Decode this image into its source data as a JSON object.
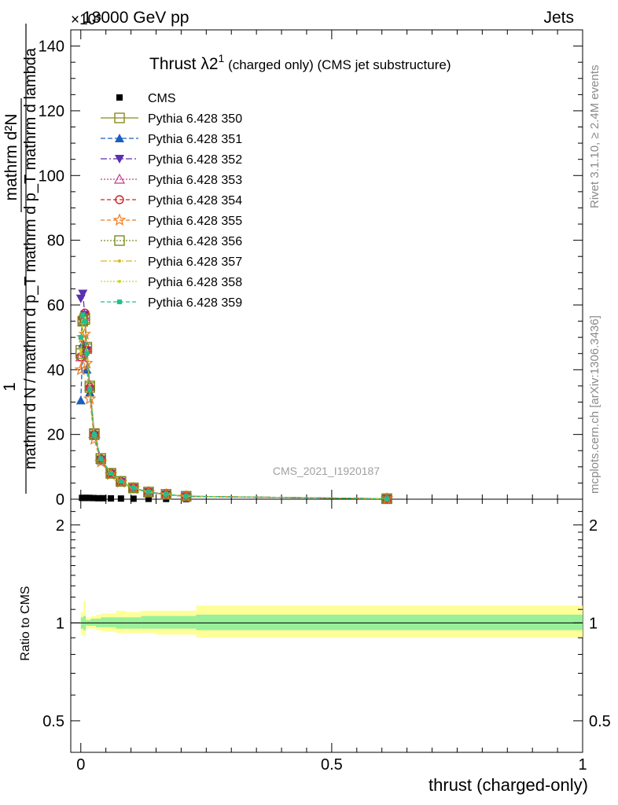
{
  "header": {
    "left": "13000 GeV pp",
    "right": "Jets",
    "exponent": "×10³"
  },
  "side_texts": {
    "rivet": "Rivet 3.1.10, ≥ 2.4M events",
    "mcplots": "mcplots.cern.ch [arXiv:1306.3436]"
  },
  "chart_data": [
    {
      "type": "line",
      "panel": "main",
      "title": "Thrust λ_2¹ (charged only) (CMS jet substructure)",
      "watermark": "CMS_2021_I1920187",
      "ylabel_numerator": "mathrm d²N",
      "ylabel_denominator": "mathrm d N / mathrm d p_T mathrm d p_T mathrm d lambda",
      "ylabel_prefix": "1",
      "ylim": [
        0,
        145
      ],
      "yticks": [
        0,
        20,
        40,
        60,
        80,
        100,
        120,
        140
      ],
      "xlim": [
        -0.02,
        1.0
      ],
      "legend_position": "top-left",
      "series": [
        {
          "name": "CMS",
          "color": "#000000",
          "marker": "filled-square",
          "x": [
            0.0025,
            0.0075,
            0.0125,
            0.0175,
            0.025,
            0.035,
            0.045,
            0.06,
            0.08,
            0.105,
            0.135,
            0.17,
            0.21,
            0.61
          ],
          "y": [
            0.4,
            0.4,
            0.4,
            0.4,
            0.35,
            0.3,
            0.3,
            0.25,
            0.2,
            0.15,
            0.1,
            0.08,
            0.05,
            0.01
          ]
        },
        {
          "name": "Pythia 6.428 350",
          "color": "#8a8a1e",
          "marker": "open-square",
          "dash": "",
          "x": [
            0.0,
            0.004,
            0.008,
            0.012,
            0.018,
            0.027,
            0.04,
            0.06,
            0.08,
            0.105,
            0.135,
            0.17,
            0.21,
            0.61
          ],
          "y": [
            46,
            55,
            56,
            47,
            35,
            20,
            12.5,
            8,
            5.5,
            3.5,
            2.2,
            1.5,
            0.9,
            0.15
          ]
        },
        {
          "name": "Pythia 6.428 351",
          "color": "#1a5fbf",
          "marker": "filled-triangle-up",
          "dash": "6,3",
          "x": [
            0.0,
            0.004,
            0.008,
            0.012,
            0.018,
            0.027,
            0.04,
            0.06,
            0.08,
            0.105,
            0.135,
            0.17,
            0.21,
            0.61
          ],
          "y": [
            30.5,
            48,
            46,
            40,
            33,
            19.5,
            12,
            7.8,
            5.3,
            3.4,
            2.1,
            1.4,
            0.85,
            0.15
          ]
        },
        {
          "name": "Pythia 6.428 352",
          "color": "#5a2fb0",
          "marker": "filled-triangle-down",
          "dash": "8,3,2,3",
          "x": [
            0.0,
            0.004,
            0.008,
            0.012,
            0.018,
            0.027,
            0.04,
            0.06,
            0.08,
            0.105,
            0.135,
            0.17,
            0.21,
            0.61
          ],
          "y": [
            62,
            63.5,
            57,
            46,
            34,
            19.8,
            12.3,
            7.9,
            5.4,
            3.45,
            2.15,
            1.45,
            0.88,
            0.15
          ]
        },
        {
          "name": "Pythia 6.428 353",
          "color": "#c23a8a",
          "marker": "open-triangle-up",
          "dash": "2,2",
          "x": [
            0.0,
            0.004,
            0.008,
            0.012,
            0.018,
            0.027,
            0.04,
            0.06,
            0.08,
            0.105,
            0.135,
            0.17,
            0.21,
            0.61
          ],
          "y": [
            44,
            55,
            56.5,
            47,
            35,
            20,
            12.5,
            8,
            5.5,
            3.5,
            2.2,
            1.5,
            0.9,
            0.15
          ]
        },
        {
          "name": "Pythia 6.428 354",
          "color": "#d62020",
          "marker": "open-circle",
          "dash": "5,3",
          "x": [
            0.0,
            0.004,
            0.008,
            0.012,
            0.018,
            0.027,
            0.04,
            0.06,
            0.08,
            0.105,
            0.135,
            0.17,
            0.21,
            0.61
          ],
          "y": [
            44,
            56,
            57.5,
            46,
            34.5,
            20,
            12.4,
            8,
            5.5,
            3.5,
            2.2,
            1.5,
            0.9,
            0.15
          ]
        },
        {
          "name": "Pythia 6.428 355",
          "color": "#f07a1e",
          "marker": "open-star",
          "dash": "5,3",
          "x": [
            0.0,
            0.004,
            0.008,
            0.012,
            0.018,
            0.027,
            0.04,
            0.06,
            0.08,
            0.105,
            0.135,
            0.17,
            0.21,
            0.61
          ],
          "y": [
            40,
            50,
            51,
            42,
            31,
            18.5,
            11.5,
            7.6,
            5.2,
            3.3,
            2.1,
            1.4,
            0.85,
            0.15
          ]
        },
        {
          "name": "Pythia 6.428 356",
          "color": "#7a8a1e",
          "marker": "open-square",
          "dash": "2,2",
          "x": [
            0.0,
            0.004,
            0.008,
            0.012,
            0.018,
            0.027,
            0.04,
            0.06,
            0.08,
            0.105,
            0.135,
            0.17,
            0.21,
            0.61
          ],
          "y": [
            45,
            55,
            55.5,
            46.5,
            34.5,
            20.3,
            12.6,
            8,
            5.5,
            3.5,
            2.2,
            1.5,
            0.9,
            0.15
          ]
        },
        {
          "name": "Pythia 6.428 357",
          "color": "#d9b81c",
          "marker": "small-dot",
          "dash": "8,3,2,3",
          "x": [
            0.0,
            0.004,
            0.008,
            0.012,
            0.018,
            0.027,
            0.04,
            0.06,
            0.08,
            0.105,
            0.135,
            0.17,
            0.21,
            0.61
          ],
          "y": [
            45,
            55,
            56,
            46,
            34.5,
            20,
            12.5,
            8,
            5.5,
            3.5,
            2.2,
            1.5,
            0.9,
            0.15
          ]
        },
        {
          "name": "Pythia 6.428 358",
          "color": "#c8d42a",
          "marker": "small-dot",
          "dash": "2,2",
          "x": [
            0.0,
            0.004,
            0.008,
            0.012,
            0.018,
            0.027,
            0.04,
            0.06,
            0.08,
            0.105,
            0.135,
            0.17,
            0.21,
            0.61
          ],
          "y": [
            46,
            55,
            56,
            46,
            34.5,
            20,
            12.5,
            8,
            5.5,
            3.5,
            2.2,
            1.5,
            0.9,
            0.15
          ]
        },
        {
          "name": "Pythia 6.428 359",
          "color": "#22c08a",
          "marker": "filled-square-small",
          "dash": "5,3",
          "x": [
            0.0,
            0.004,
            0.008,
            0.012,
            0.018,
            0.027,
            0.04,
            0.06,
            0.08,
            0.105,
            0.135,
            0.17,
            0.21,
            0.61
          ],
          "y": [
            50,
            57,
            55,
            45,
            34,
            20,
            12.5,
            8,
            5.5,
            3.5,
            2.2,
            1.5,
            0.9,
            0.15
          ]
        }
      ]
    },
    {
      "type": "area",
      "panel": "ratio",
      "ylabel": "Ratio to CMS",
      "xlabel": "thrust (charged-only)",
      "xlim": [
        -0.02,
        1.0
      ],
      "xticks": [
        0,
        0.5,
        1
      ],
      "xtick_labels": [
        "0",
        "0.5",
        "1"
      ],
      "ylim": [
        0.4,
        2.4
      ],
      "yscale": "log",
      "yticks": [
        0.5,
        1,
        2
      ],
      "ytick_labels": [
        "0.5",
        "1",
        "2"
      ],
      "band_colors": {
        "inner": "#99f09a",
        "outer": "#ffff99"
      },
      "bins": [
        {
          "x0": 0.0,
          "x1": 0.005,
          "inner": [
            0.96,
            1.04
          ],
          "outer": [
            0.92,
            1.08
          ]
        },
        {
          "x0": 0.005,
          "x1": 0.01,
          "inner": [
            0.95,
            1.05
          ],
          "outer": [
            0.91,
            1.17
          ]
        },
        {
          "x0": 0.01,
          "x1": 0.02,
          "inner": [
            0.98,
            1.02
          ],
          "outer": [
            0.96,
            1.04
          ]
        },
        {
          "x0": 0.02,
          "x1": 0.03,
          "inner": [
            0.98,
            1.03
          ],
          "outer": [
            0.96,
            1.05
          ]
        },
        {
          "x0": 0.03,
          "x1": 0.04,
          "inner": [
            0.97,
            1.03
          ],
          "outer": [
            0.95,
            1.06
          ]
        },
        {
          "x0": 0.04,
          "x1": 0.05,
          "inner": [
            0.97,
            1.04
          ],
          "outer": [
            0.94,
            1.07
          ]
        },
        {
          "x0": 0.05,
          "x1": 0.07,
          "inner": [
            0.97,
            1.04
          ],
          "outer": [
            0.94,
            1.07
          ]
        },
        {
          "x0": 0.07,
          "x1": 0.09,
          "inner": [
            0.96,
            1.04
          ],
          "outer": [
            0.93,
            1.09
          ]
        },
        {
          "x0": 0.09,
          "x1": 0.12,
          "inner": [
            0.96,
            1.04
          ],
          "outer": [
            0.93,
            1.08
          ]
        },
        {
          "x0": 0.12,
          "x1": 0.15,
          "inner": [
            0.96,
            1.05
          ],
          "outer": [
            0.93,
            1.09
          ]
        },
        {
          "x0": 0.15,
          "x1": 0.19,
          "inner": [
            0.96,
            1.05
          ],
          "outer": [
            0.92,
            1.09
          ]
        },
        {
          "x0": 0.19,
          "x1": 0.23,
          "inner": [
            0.96,
            1.05
          ],
          "outer": [
            0.92,
            1.09
          ]
        },
        {
          "x0": 0.23,
          "x1": 1.0,
          "inner": [
            0.95,
            1.06
          ],
          "outer": [
            0.9,
            1.13
          ]
        }
      ]
    }
  ]
}
